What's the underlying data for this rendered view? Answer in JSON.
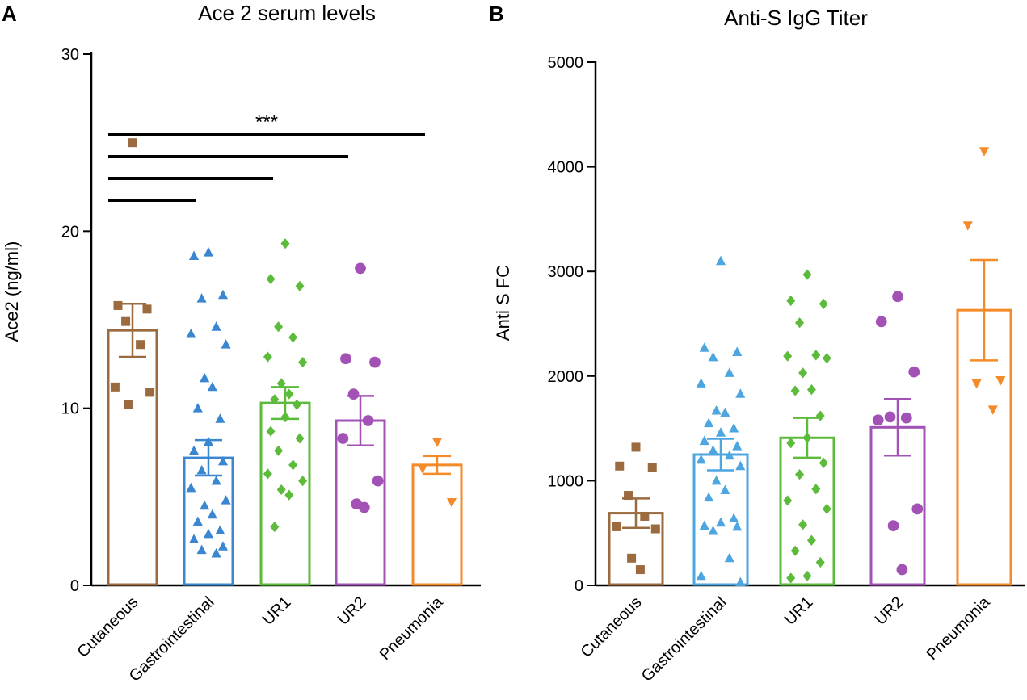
{
  "panel_labels": [
    "A",
    "B"
  ],
  "chart_data": [
    {
      "type": "bar",
      "title": "Ace 2  serum levels",
      "xlabel": "",
      "ylabel": "Ace2  (ng/ml)",
      "ylim": [
        0,
        30
      ],
      "yticks": [
        0,
        10,
        20,
        30
      ],
      "categories": [
        "Cutaneous",
        "Gastrointestinal",
        "UR1",
        "UR2",
        "Pneumonia"
      ],
      "colors": [
        "#9b6b3f",
        "#3a86d1",
        "#5dbb3c",
        "#a252b5",
        "#f58a28"
      ],
      "markers": [
        "square",
        "triangle",
        "diamond",
        "circle",
        "triangle-down"
      ],
      "means": [
        14.4,
        7.2,
        10.3,
        9.3,
        6.8
      ],
      "sem": [
        1.5,
        1.0,
        0.9,
        1.4,
        0.5
      ],
      "points": [
        [
          25.0,
          15.8,
          15.6,
          14.9,
          13.6,
          11.2,
          10.9,
          10.2
        ],
        [
          18.8,
          18.6,
          16.4,
          16.2,
          14.6,
          14.2,
          13.6,
          11.7,
          11.2,
          10.0,
          9.4,
          8.1,
          7.6,
          7.0,
          6.5,
          5.9,
          5.5,
          4.8,
          4.5,
          4.0,
          3.6,
          3.1,
          2.9,
          2.6,
          2.2,
          2.0,
          1.8
        ],
        [
          19.3,
          17.3,
          16.9,
          14.6,
          14.0,
          12.9,
          12.6,
          11.4,
          10.8,
          10.5,
          10.2,
          9.5,
          8.7,
          8.3,
          7.6,
          6.8,
          6.3,
          5.9,
          5.4,
          5.1,
          3.3
        ],
        [
          17.9,
          12.8,
          12.6,
          10.8,
          9.3,
          8.3,
          5.9,
          4.6,
          4.4
        ],
        [
          8.1,
          6.6,
          4.7
        ]
      ],
      "significance": {
        "label": "***",
        "brackets": [
          [
            "Cutaneous",
            "Gastrointestinal"
          ],
          [
            "Cutaneous",
            "UR1"
          ],
          [
            "Cutaneous",
            "UR2"
          ],
          [
            "Cutaneous",
            "Pneumonia"
          ]
        ]
      }
    },
    {
      "type": "bar",
      "title": "Anti-S IgG Titer",
      "xlabel": "",
      "ylabel": "Anti S FC",
      "ylim": [
        0,
        5000
      ],
      "yticks": [
        0,
        1000,
        2000,
        3000,
        4000,
        5000
      ],
      "categories": [
        "Cutaneous",
        "Gastrointestinal",
        "UR1",
        "UR2",
        "Pneumonia"
      ],
      "colors": [
        "#9b6b3f",
        "#4da6e0",
        "#5dbb3c",
        "#a252b5",
        "#f58a28"
      ],
      "markers": [
        "square",
        "triangle",
        "diamond",
        "circle",
        "triangle-down"
      ],
      "means": [
        690,
        1250,
        1410,
        1510,
        2630
      ],
      "sem": [
        140,
        150,
        190,
        270,
        480
      ],
      "points": [
        [
          1320,
          1140,
          1130,
          860,
          660,
          560,
          540,
          260,
          150
        ],
        [
          3100,
          2270,
          2230,
          2180,
          2030,
          1930,
          1830,
          1670,
          1650,
          1550,
          1500,
          1460,
          1380,
          1330,
          1290,
          1240,
          1200,
          1140,
          1000,
          910,
          840,
          640,
          600,
          570,
          560,
          520,
          260,
          90,
          30
        ],
        [
          2970,
          2720,
          2690,
          2510,
          2200,
          2190,
          2170,
          2030,
          1870,
          1860,
          1620,
          1410,
          1360,
          1170,
          1060,
          920,
          810,
          730,
          580,
          430,
          330,
          220,
          90,
          70
        ],
        [
          2760,
          2520,
          2040,
          1610,
          1600,
          1580,
          730,
          570,
          150
        ],
        [
          4150,
          3440,
          1960,
          1930,
          1680
        ]
      ]
    }
  ]
}
